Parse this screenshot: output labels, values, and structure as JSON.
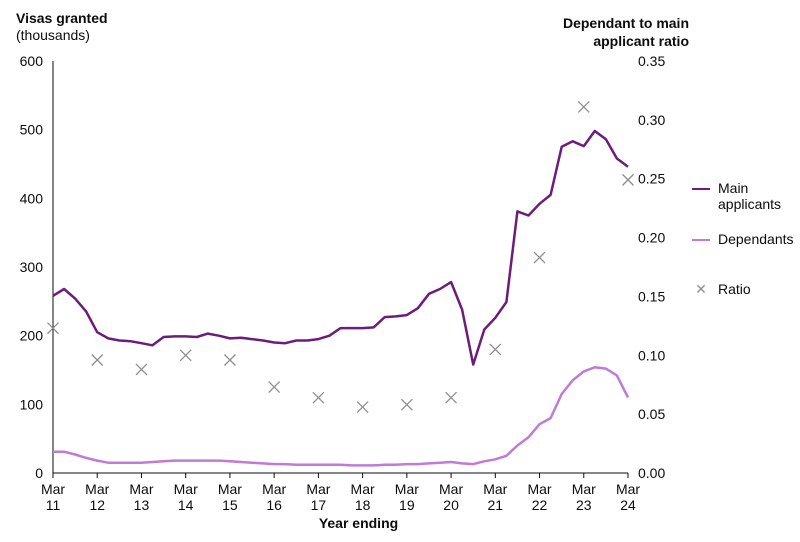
{
  "left_axis_title": "Visas granted",
  "left_axis_subtitle": "(thousands)",
  "right_axis_title": "Dependant to main applicant ratio",
  "legend": {
    "main_label": "Main applicants",
    "dependants_label": "Dependants",
    "ratio_label": "Ratio"
  },
  "colors": {
    "main": "#6c1d7c",
    "dependants": "#c07ad8",
    "ratio": "#8e8e8e",
    "axis": "#0b0c0c",
    "grid": "#cccccc"
  },
  "chart_data": {
    "type": "line",
    "xlabel": "Year ending",
    "x_ticks": [
      {
        "line1": "Mar",
        "line2": "11"
      },
      {
        "line1": "Mar",
        "line2": "12"
      },
      {
        "line1": "Mar",
        "line2": "13"
      },
      {
        "line1": "Mar",
        "line2": "14"
      },
      {
        "line1": "Mar",
        "line2": "15"
      },
      {
        "line1": "Mar",
        "line2": "16"
      },
      {
        "line1": "Mar",
        "line2": "17"
      },
      {
        "line1": "Mar",
        "line2": "18"
      },
      {
        "line1": "Mar",
        "line2": "19"
      },
      {
        "line1": "Mar",
        "line2": "20"
      },
      {
        "line1": "Mar",
        "line2": "21"
      },
      {
        "line1": "Mar",
        "line2": "22"
      },
      {
        "line1": "Mar",
        "line2": "23"
      },
      {
        "line1": "Mar",
        "line2": "24"
      }
    ],
    "x_range": [
      2011,
      2024
    ],
    "y_left_range": [
      0,
      600
    ],
    "y_left_ticks": [
      "0",
      "100",
      "200",
      "300",
      "400",
      "500",
      "600"
    ],
    "y_right_range": [
      0,
      0.35
    ],
    "y_right_ticks": [
      "0.00",
      "0.05",
      "0.10",
      "0.15",
      "0.20",
      "0.25",
      "0.30",
      "0.35"
    ],
    "x": [
      2011,
      2011.25,
      2011.5,
      2011.75,
      2012,
      2012.25,
      2012.5,
      2012.75,
      2013,
      2013.25,
      2013.5,
      2013.75,
      2014,
      2014.25,
      2014.5,
      2014.75,
      2015,
      2015.25,
      2015.5,
      2015.75,
      2016,
      2016.25,
      2016.5,
      2016.75,
      2017,
      2017.25,
      2017.5,
      2017.75,
      2018,
      2018.25,
      2018.5,
      2018.75,
      2019,
      2019.25,
      2019.5,
      2019.75,
      2020,
      2020.25,
      2020.5,
      2020.75,
      2021,
      2021.25,
      2021.5,
      2021.75,
      2022,
      2022.25,
      2022.5,
      2022.75,
      2023,
      2023.25,
      2023.5,
      2023.75,
      2024
    ],
    "series": [
      {
        "name": "Main applicants",
        "axis": "left",
        "values": [
          258,
          268,
          254,
          235,
          205,
          196,
          193,
          192,
          189,
          186,
          198,
          199,
          199,
          198,
          203,
          200,
          196,
          197,
          195,
          193,
          190,
          189,
          193,
          193,
          195,
          200,
          211,
          211,
          211,
          212,
          227,
          228,
          230,
          240,
          261,
          268,
          278,
          238,
          158,
          209,
          226,
          249,
          381,
          375,
          392,
          405,
          475,
          483,
          476,
          498,
          486,
          458,
          446
        ]
      },
      {
        "name": "Dependants",
        "axis": "left",
        "values": [
          31,
          31,
          27,
          22,
          18,
          15,
          15,
          15,
          15,
          16,
          17,
          18,
          18,
          18,
          18,
          18,
          17,
          16,
          15,
          14,
          13,
          13,
          12,
          12,
          12,
          12,
          12,
          11,
          11,
          11,
          12,
          12,
          13,
          13,
          14,
          15,
          16,
          14,
          13,
          17,
          20,
          25,
          40,
          52,
          71,
          80,
          115,
          135,
          148,
          154,
          152,
          142,
          110
        ]
      }
    ],
    "ratio": {
      "name": "Ratio",
      "axis": "right",
      "x": [
        2011,
        2012,
        2013,
        2014,
        2015,
        2016,
        2017,
        2018,
        2019,
        2020,
        2021,
        2022,
        2023,
        2024
      ],
      "values": [
        0.123,
        0.096,
        0.088,
        0.1,
        0.096,
        0.073,
        0.064,
        0.056,
        0.058,
        0.064,
        0.105,
        0.183,
        0.311,
        0.249
      ]
    }
  }
}
